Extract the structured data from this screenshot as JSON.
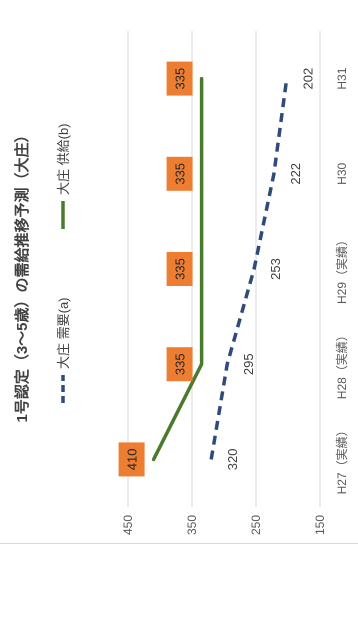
{
  "chart_data": {
    "type": "line",
    "title": "1号認定（3～5歳）の需給推移予測（大庄）",
    "categories": [
      "H27（実績）",
      "H28（実績）",
      "H29（実績）",
      "H30",
      "H31"
    ],
    "series": [
      {
        "name": "大庄 需要(a)",
        "values": [
          320,
          295,
          253,
          222,
          202
        ],
        "color": "#2f4b7c",
        "style": "dashed",
        "label_style": "plain",
        "labels": [
          "320",
          "295",
          "253",
          "222",
          "202"
        ]
      },
      {
        "name": "大庄 供給(b)",
        "values": [
          410,
          335,
          335,
          335,
          335
        ],
        "color": "#4a7a2c",
        "style": "solid",
        "label_style": "box",
        "labels": [
          "410",
          "335",
          "335",
          "335",
          "335"
        ]
      }
    ],
    "yticks": [
      150,
      250,
      350,
      450
    ],
    "ytick_labels": [
      "150",
      "250",
      "350",
      "450"
    ],
    "ylim": [
      150,
      450
    ],
    "grid": true,
    "legend_position": "top",
    "label_box_color": "#ed7d31",
    "grid_color": "#d9d9d9"
  }
}
